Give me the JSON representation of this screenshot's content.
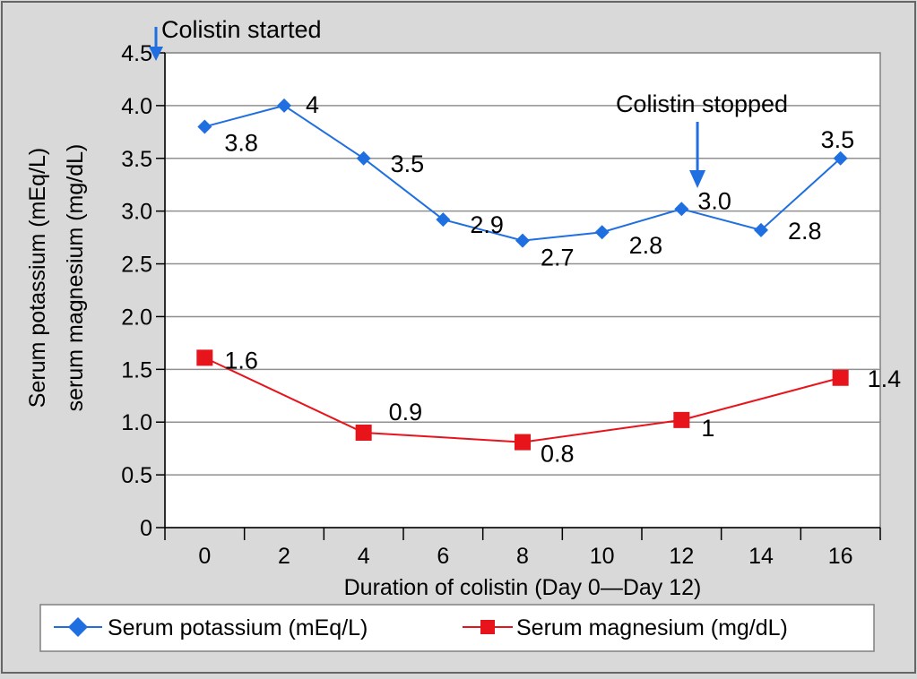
{
  "chart_data": {
    "type": "line",
    "ylabel_line1": "Serum potassium (mEq/L)",
    "ylabel_line2": "serum magnesium (mg/dL)",
    "xlabel": "Duration of colistin (Day 0—Day 12)",
    "x_ticks": [
      "0",
      "2",
      "4",
      "6",
      "8",
      "10",
      "12",
      "14",
      "16"
    ],
    "y_ticks": [
      "0",
      "0.5",
      "1.0",
      "1.5",
      "2.0",
      "2.5",
      "3.0",
      "3.5",
      "4.0",
      "4.5"
    ],
    "ylim": [
      0,
      4.5
    ],
    "xlim": [
      -1,
      17
    ],
    "grid": "horizontal",
    "legend_position": "bottom",
    "series": [
      {
        "name": "Serum potassium (mEq/L)",
        "color": "#1f6fe0",
        "marker": "diamond",
        "x": [
          0,
          2,
          4,
          6,
          8,
          10,
          12,
          14,
          16
        ],
        "values": [
          3.8,
          4.0,
          3.5,
          2.92,
          2.72,
          2.8,
          3.02,
          2.82,
          3.5
        ],
        "labels": [
          "3.8",
          "4",
          "3.5",
          "2.9",
          "2.7",
          "2.8",
          "3.0",
          "2.8",
          "3.5"
        ]
      },
      {
        "name": "Serum magnesium (mg/dL)",
        "color": "#e8141c",
        "marker": "square",
        "x": [
          0,
          4,
          8,
          12,
          16
        ],
        "values": [
          1.61,
          0.9,
          0.81,
          1.02,
          1.42
        ],
        "labels": [
          "1.6",
          "0.9",
          "0.8",
          "1",
          "1.4"
        ]
      }
    ],
    "annotations": [
      {
        "text": "Colistin started",
        "x": -1,
        "y": 4.5
      },
      {
        "text": "Colistin stopped",
        "x": 12.4,
        "y": 3.2
      }
    ]
  }
}
